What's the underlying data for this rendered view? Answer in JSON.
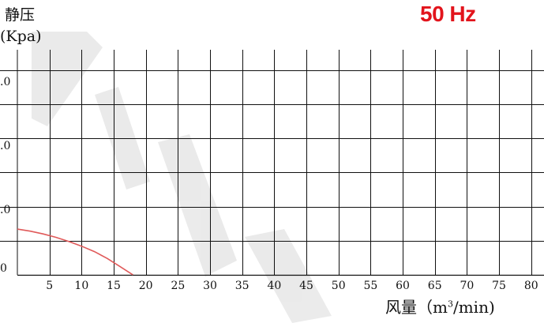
{
  "chart_data": {
    "type": "line",
    "title": "50 Hz",
    "ylabel": "静压",
    "ylabel_unit": "(Kpa)",
    "xlabel_text": "风量（",
    "xlabel_unit": "m",
    "xlabel_sup": "3",
    "xlabel_tail": "/min)",
    "x_ticks": [
      5,
      10,
      15,
      20,
      25,
      30,
      35,
      40,
      45,
      50,
      55,
      60,
      65,
      70,
      75,
      80
    ],
    "y_ticks": [
      ".0",
      ".0",
      ".0",
      "0"
    ],
    "xlim": [
      0,
      82
    ],
    "ylim": [
      0,
      3.3
    ],
    "grid": true,
    "series": [
      {
        "color": "#e05a5a",
        "x": [
          0,
          2,
          4,
          6,
          8,
          10,
          12,
          14,
          16,
          17.5,
          18
        ],
        "y": [
          0.67,
          0.64,
          0.6,
          0.55,
          0.49,
          0.42,
          0.34,
          0.24,
          0.12,
          0.03,
          0
        ]
      }
    ]
  }
}
